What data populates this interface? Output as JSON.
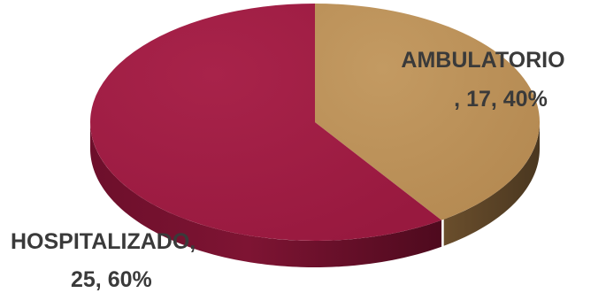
{
  "chart_data": {
    "type": "pie",
    "style": "3d",
    "slices": [
      {
        "label": "AMBULATORIO",
        "value": 17,
        "percent": "40%",
        "color": "#B98E57"
      },
      {
        "label": "HOSPITALIZADO",
        "value": 25,
        "percent": "60%",
        "color": "#A01F44"
      }
    ],
    "data_labels": [
      {
        "line1": "AMBULATORIO",
        "line2": ", 17, 40%"
      },
      {
        "line1": "HOSPITALIZADO,",
        "line2": "25, 60%"
      }
    ]
  }
}
